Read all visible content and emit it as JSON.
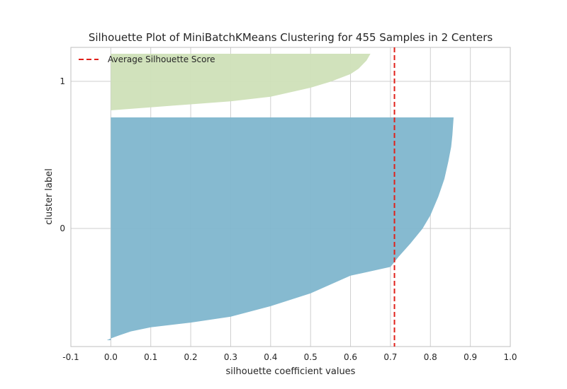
{
  "chart_data": {
    "type": "area",
    "title": "Silhouette Plot of MiniBatchKMeans Clustering for 455 Samples in 2 Centers",
    "xlabel": "silhouette coefficient values",
    "ylabel": "cluster label",
    "xlim": [
      -0.1,
      1.0
    ],
    "x_ticks": [
      "-0.1",
      "0.0",
      "0.1",
      "0.2",
      "0.3",
      "0.4",
      "0.5",
      "0.6",
      "0.7",
      "0.8",
      "0.9",
      "1.0"
    ],
    "y_ticks": [
      "0",
      "1"
    ],
    "grid": true,
    "average_silhouette_score": 0.71,
    "legend": {
      "position": "top-left",
      "entries": [
        "Average Silhouette Score"
      ]
    },
    "clusters": [
      {
        "label": "0",
        "color": "#7fb6ce",
        "profile": [
          [
            -0.01,
            0
          ],
          [
            0.0,
            3
          ],
          [
            0.02,
            8
          ],
          [
            0.05,
            15
          ],
          [
            0.1,
            22
          ],
          [
            0.2,
            30
          ],
          [
            0.3,
            40
          ],
          [
            0.4,
            58
          ],
          [
            0.5,
            80
          ],
          [
            0.6,
            110
          ],
          [
            0.7,
            125
          ],
          [
            0.72,
            142
          ],
          [
            0.75,
            165
          ],
          [
            0.78,
            190
          ],
          [
            0.8,
            213
          ],
          [
            0.82,
            245
          ],
          [
            0.835,
            275
          ],
          [
            0.845,
            305
          ],
          [
            0.852,
            330
          ],
          [
            0.855,
            350
          ],
          [
            0.858,
            380
          ]
        ]
      },
      {
        "label": "1",
        "color": "#cfe0b8",
        "profile": [
          [
            0.0,
            0
          ],
          [
            0.05,
            2
          ],
          [
            0.1,
            4
          ],
          [
            0.2,
            8
          ],
          [
            0.3,
            12
          ],
          [
            0.4,
            18
          ],
          [
            0.5,
            30
          ],
          [
            0.55,
            38
          ],
          [
            0.6,
            48
          ],
          [
            0.62,
            55
          ],
          [
            0.64,
            66
          ],
          [
            0.65,
            75
          ]
        ]
      }
    ],
    "colors": {
      "average_line": "#e0201a",
      "grid": "#cfcfcf",
      "frame": "#bfbfbf"
    }
  }
}
